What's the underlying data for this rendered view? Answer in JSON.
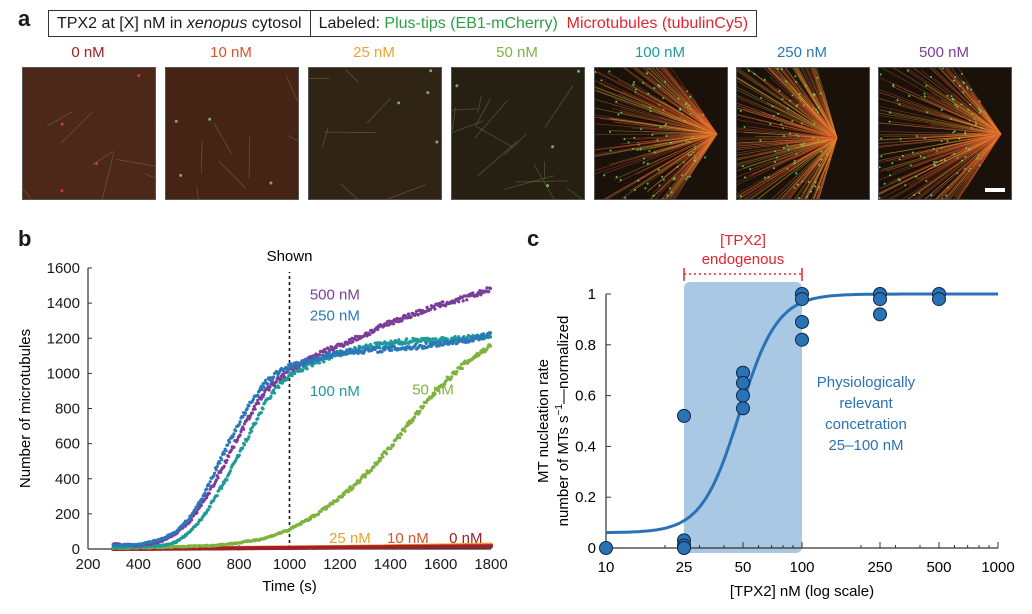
{
  "panel_a": {
    "letter": "a",
    "header": {
      "condition_prefix": "TPX2 at [X] nM in ",
      "condition_italic": "xenopus",
      "condition_suffix": " cytosol",
      "labeled_prefix": "Labeled: ",
      "label_green": "Plus-tips (EB1-mCherry)",
      "label_red": "Microtubules (tubulinCy5)",
      "green_color": "#2e9e48",
      "red_color": "#e0262e"
    },
    "images": [
      {
        "label": "0 nM",
        "color": "#a0202a",
        "density": 0.03,
        "aster": false
      },
      {
        "label": "10 nM",
        "color": "#d9532a",
        "density": 0.02,
        "aster": false
      },
      {
        "label": "25 nM",
        "color": "#e6a52a",
        "density": 0.03,
        "aster": false
      },
      {
        "label": "50 nM",
        "color": "#7fb23f",
        "density": 0.12,
        "aster": false
      },
      {
        "label": "100 nM",
        "color": "#1e9a9a",
        "density": 0.8,
        "aster": true
      },
      {
        "label": "250 nM",
        "color": "#2a78b8",
        "density": 1.0,
        "aster": true
      },
      {
        "label": "500 nM",
        "color": "#7a3e98",
        "density": 0.85,
        "aster": true
      }
    ],
    "scale_bar": true
  },
  "chart_data": [
    {
      "panel": "b",
      "type": "scatter",
      "title": "",
      "annotation": "Shown",
      "annotation_x": 1000,
      "xlabel": "Time (s)",
      "ylabel": "Number of microtubules",
      "xlim": [
        200,
        1800
      ],
      "ylim": [
        0,
        1600
      ],
      "xticks": [
        200,
        400,
        600,
        800,
        1000,
        1200,
        1400,
        1600,
        1800
      ],
      "yticks": [
        0,
        200,
        400,
        600,
        800,
        1000,
        1200,
        1400,
        1600
      ],
      "grid": false,
      "series": [
        {
          "name": "0 nM",
          "color": "#a0202a",
          "label_x": 1700,
          "label_y": 35,
          "x": [
            300,
            600,
            900,
            1200,
            1500,
            1800
          ],
          "y": [
            0,
            2,
            5,
            8,
            12,
            15
          ]
        },
        {
          "name": "10 nM",
          "color": "#d9532a",
          "label_x": 1470,
          "label_y": 35,
          "x": [
            300,
            600,
            900,
            1200,
            1500,
            1800
          ],
          "y": [
            0,
            3,
            6,
            10,
            14,
            18
          ]
        },
        {
          "name": "25 nM",
          "color": "#e6a52a",
          "label_x": 1240,
          "label_y": 35,
          "x": [
            300,
            600,
            900,
            1200,
            1500,
            1800
          ],
          "y": [
            0,
            4,
            8,
            12,
            18,
            25
          ]
        },
        {
          "name": "50 nM",
          "color": "#7fb23f",
          "label_x": 1570,
          "label_y": 880,
          "x": [
            300,
            500,
            700,
            800,
            900,
            1000,
            1100,
            1200,
            1300,
            1400,
            1500,
            1600,
            1700,
            1800
          ],
          "y": [
            5,
            10,
            20,
            35,
            60,
            110,
            190,
            290,
            420,
            580,
            760,
            930,
            1060,
            1160
          ]
        },
        {
          "name": "100 nM",
          "color": "#1e9a9a",
          "label_x": 1180,
          "label_y": 870,
          "x": [
            300,
            400,
            500,
            550,
            600,
            650,
            700,
            750,
            800,
            850,
            900,
            950,
            1000,
            1100,
            1200,
            1300,
            1400,
            1500,
            1600,
            1700,
            1800
          ],
          "y": [
            10,
            12,
            20,
            40,
            90,
            170,
            280,
            400,
            540,
            680,
            820,
            920,
            990,
            1060,
            1110,
            1150,
            1170,
            1190,
            1190,
            1200,
            1210
          ]
        },
        {
          "name": "250 nM",
          "color": "#2a78b8",
          "label_x": 1180,
          "label_y": 1300,
          "x": [
            300,
            400,
            450,
            500,
            550,
            600,
            650,
            700,
            750,
            800,
            850,
            900,
            950,
            1000,
            1100,
            1200,
            1300,
            1400,
            1500,
            1600,
            1700,
            1800
          ],
          "y": [
            20,
            25,
            40,
            60,
            100,
            170,
            280,
            430,
            580,
            720,
            840,
            940,
            1000,
            1040,
            1080,
            1120,
            1130,
            1140,
            1150,
            1170,
            1190,
            1220
          ]
        },
        {
          "name": "500 nM",
          "color": "#7a3e98",
          "label_x": 1180,
          "label_y": 1420,
          "x": [
            300,
            400,
            450,
            500,
            550,
            600,
            650,
            700,
            750,
            800,
            850,
            900,
            950,
            1000,
            1100,
            1200,
            1300,
            1400,
            1500,
            1600,
            1700,
            1800
          ],
          "y": [
            30,
            20,
            30,
            50,
            90,
            150,
            250,
            370,
            510,
            650,
            780,
            890,
            960,
            1020,
            1100,
            1160,
            1220,
            1290,
            1340,
            1390,
            1430,
            1480
          ]
        }
      ]
    },
    {
      "panel": "c",
      "type": "scatter",
      "title": "",
      "xlabel": "[TPX2] nM (log scale)",
      "ylabel_line1": "MT nucleation rate",
      "ylabel_line2_prefix": "number of MTs s",
      "ylabel_line2_sup": "−1",
      "ylabel_line2_suffix": "—normalized",
      "xscale": "log",
      "xlim": [
        10,
        1000
      ],
      "ylim": [
        0,
        1
      ],
      "xticks": [
        10,
        25,
        50,
        100,
        250,
        500,
        1000
      ],
      "xtick_labels": [
        "10",
        "25",
        "50",
        "100",
        "250",
        "500",
        "1000"
      ],
      "yticks": [
        0,
        0.2,
        0.4,
        0.6,
        0.8,
        1
      ],
      "ytick_labels": [
        "0",
        "0.2",
        "0.4",
        "0.6",
        "0.8",
        "1"
      ],
      "grid": false,
      "point_color": "#2a72b5",
      "points": [
        {
          "x": 10,
          "y": 0.0
        },
        {
          "x": 25,
          "y": 0.52
        },
        {
          "x": 25,
          "y": 0.03
        },
        {
          "x": 25,
          "y": 0.01
        },
        {
          "x": 25,
          "y": 0.0
        },
        {
          "x": 50,
          "y": 0.69
        },
        {
          "x": 50,
          "y": 0.65
        },
        {
          "x": 50,
          "y": 0.6
        },
        {
          "x": 50,
          "y": 0.55
        },
        {
          "x": 100,
          "y": 1.0
        },
        {
          "x": 100,
          "y": 0.98
        },
        {
          "x": 100,
          "y": 0.89
        },
        {
          "x": 100,
          "y": 0.82
        },
        {
          "x": 250,
          "y": 1.0
        },
        {
          "x": 250,
          "y": 0.98
        },
        {
          "x": 250,
          "y": 0.92
        },
        {
          "x": 500,
          "y": 1.0
        },
        {
          "x": 500,
          "y": 0.98
        }
      ],
      "fit_curve": {
        "type": "hill",
        "color": "#2a72b5",
        "ec50": 48,
        "hill_n": 4.5,
        "baseline": 0.06,
        "max": 1.0,
        "x_range": [
          10,
          1000
        ]
      },
      "shaded_region": {
        "x_from": 25,
        "x_to": 100,
        "color": "#a8c8e4"
      },
      "endogenous_bracket": {
        "x_from": 25,
        "x_to": 100,
        "label_line1": "[TPX2]",
        "label_line2": "endogenous",
        "color": "#e0262e"
      },
      "annotation_lines": [
        "Physiologically",
        "relevant",
        "concetration",
        "25–100 nM"
      ],
      "annotation_color": "#2a72b5"
    }
  ],
  "panel_b": {
    "letter": "b"
  },
  "panel_c": {
    "letter": "c"
  }
}
